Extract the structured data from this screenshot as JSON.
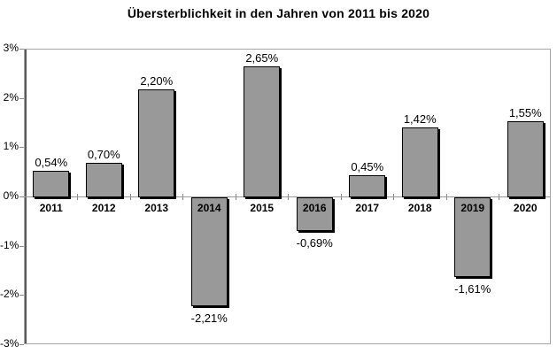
{
  "chart_data": {
    "type": "bar",
    "title": "Übersterblichkeit in den Jahren von 2011 bis 2020",
    "categories": [
      "2011",
      "2012",
      "2013",
      "2014",
      "2015",
      "2016",
      "2017",
      "2018",
      "2019",
      "2020"
    ],
    "values": [
      0.54,
      0.7,
      2.2,
      -2.21,
      2.65,
      -0.69,
      0.45,
      1.42,
      -1.61,
      1.55
    ],
    "value_labels": [
      "0,54%",
      "0,70%",
      "2,20%",
      "-2,21%",
      "2,65%",
      "-0,69%",
      "0,45%",
      "1,42%",
      "-1,61%",
      "1,55%"
    ],
    "y_tick_labels": [
      "3%",
      "2%",
      "1%",
      "0%",
      "-1%",
      "-2%",
      "-3%"
    ],
    "ylim": [
      -3,
      3
    ],
    "xlabel": "",
    "ylabel": "",
    "grid": "off",
    "legend": "none",
    "colors": {
      "bar_fill": "#999999",
      "bar_border": "#000000",
      "bar_shadow": "#000000",
      "plot_border": "#a6a6a6",
      "axis_line": "#595959",
      "tick": "#8c8c8c",
      "text": "#000000",
      "background": "#ffffff"
    }
  }
}
